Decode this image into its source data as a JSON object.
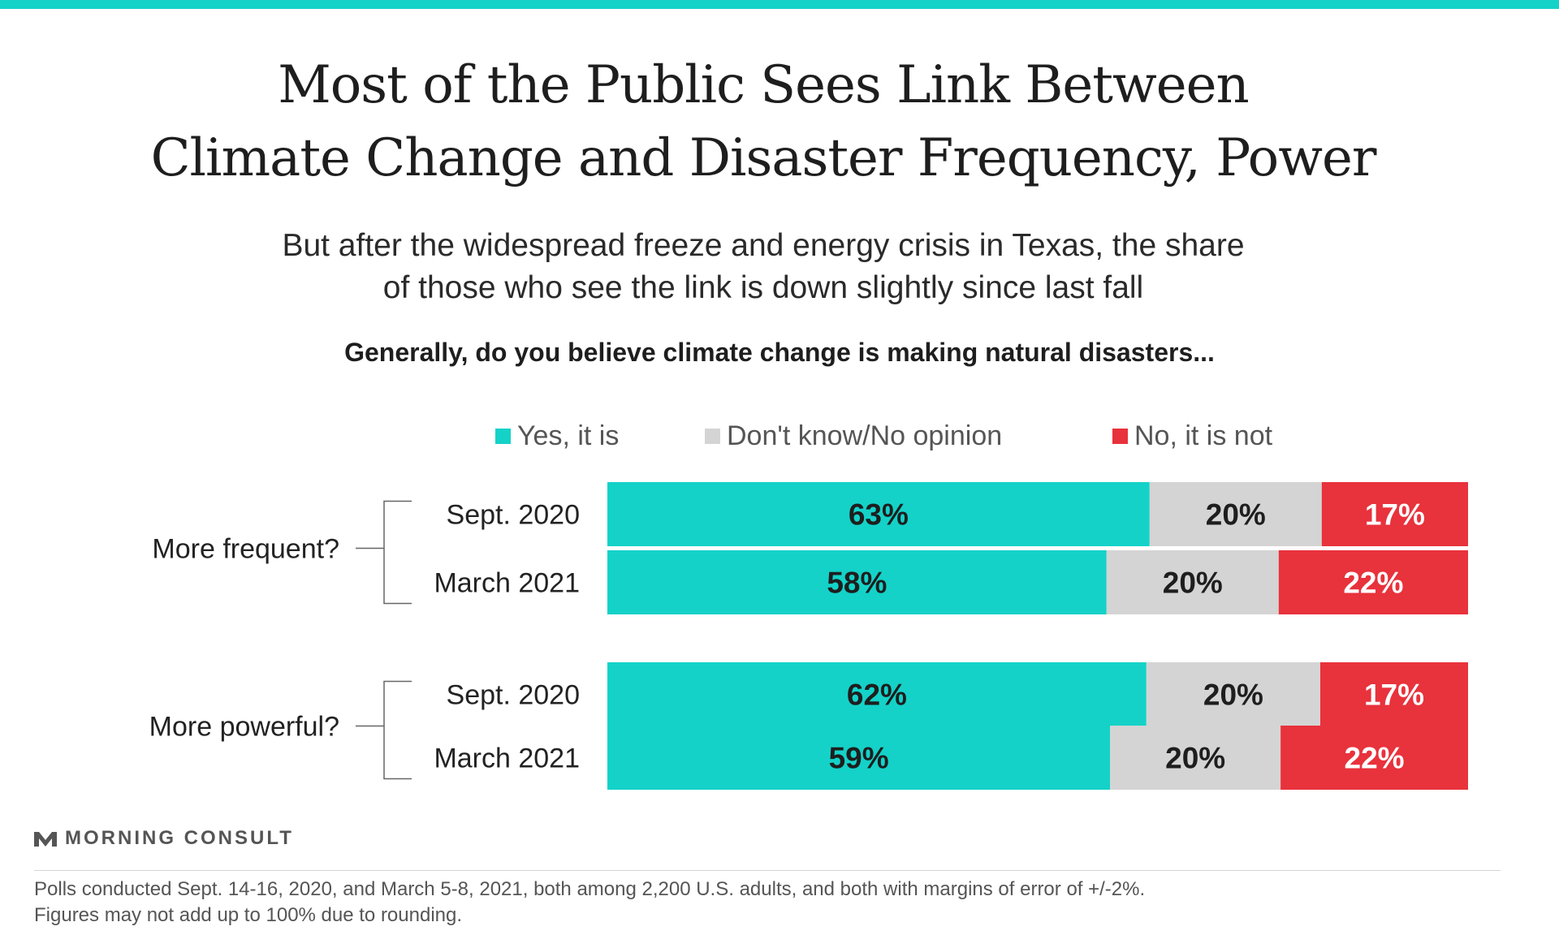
{
  "colors": {
    "accent": "#14d2c8",
    "yes": "#14d2c8",
    "dontknow": "#d4d4d4",
    "no": "#e8323c"
  },
  "title": {
    "line1": "Most of the Public Sees Link Between",
    "line2": "Climate Change and Disaster Frequency, Power"
  },
  "subtitle": {
    "line1": "But after the widespread freeze and energy crisis in Texas, the share",
    "line2": "of those who see the link is down slightly since last fall"
  },
  "question": "Generally, do you believe climate change is making natural disasters...",
  "legend": [
    "Yes, it is",
    "Don't know/No opinion",
    "No, it is not"
  ],
  "chart_data": {
    "type": "bar",
    "orientation": "horizontal",
    "stacked": true,
    "legend_position": "top",
    "groups": [
      {
        "label": "More frequent?",
        "rows": [
          {
            "label": "Sept. 2020",
            "values": [
              63,
              20,
              17
            ]
          },
          {
            "label": "March 2021",
            "values": [
              58,
              20,
              22
            ]
          }
        ]
      },
      {
        "label": "More powerful?",
        "rows": [
          {
            "label": "Sept. 2020",
            "values": [
              62,
              20,
              17
            ]
          },
          {
            "label": "March 2021",
            "values": [
              59,
              20,
              22
            ]
          }
        ]
      }
    ],
    "series": [
      {
        "name": "Yes, it is"
      },
      {
        "name": "Don't know/No opinion"
      },
      {
        "name": "No, it is not"
      }
    ],
    "value_suffix": "%"
  },
  "logo": {
    "text": "MORNING CONSULT"
  },
  "notes": {
    "line1": "Polls conducted Sept. 14-16, 2020, and March 5-8, 2021, both among 2,200 U.S. adults, and both with margins of error of +/-2%.",
    "line2": "Figures may not add up to 100% due to rounding."
  }
}
